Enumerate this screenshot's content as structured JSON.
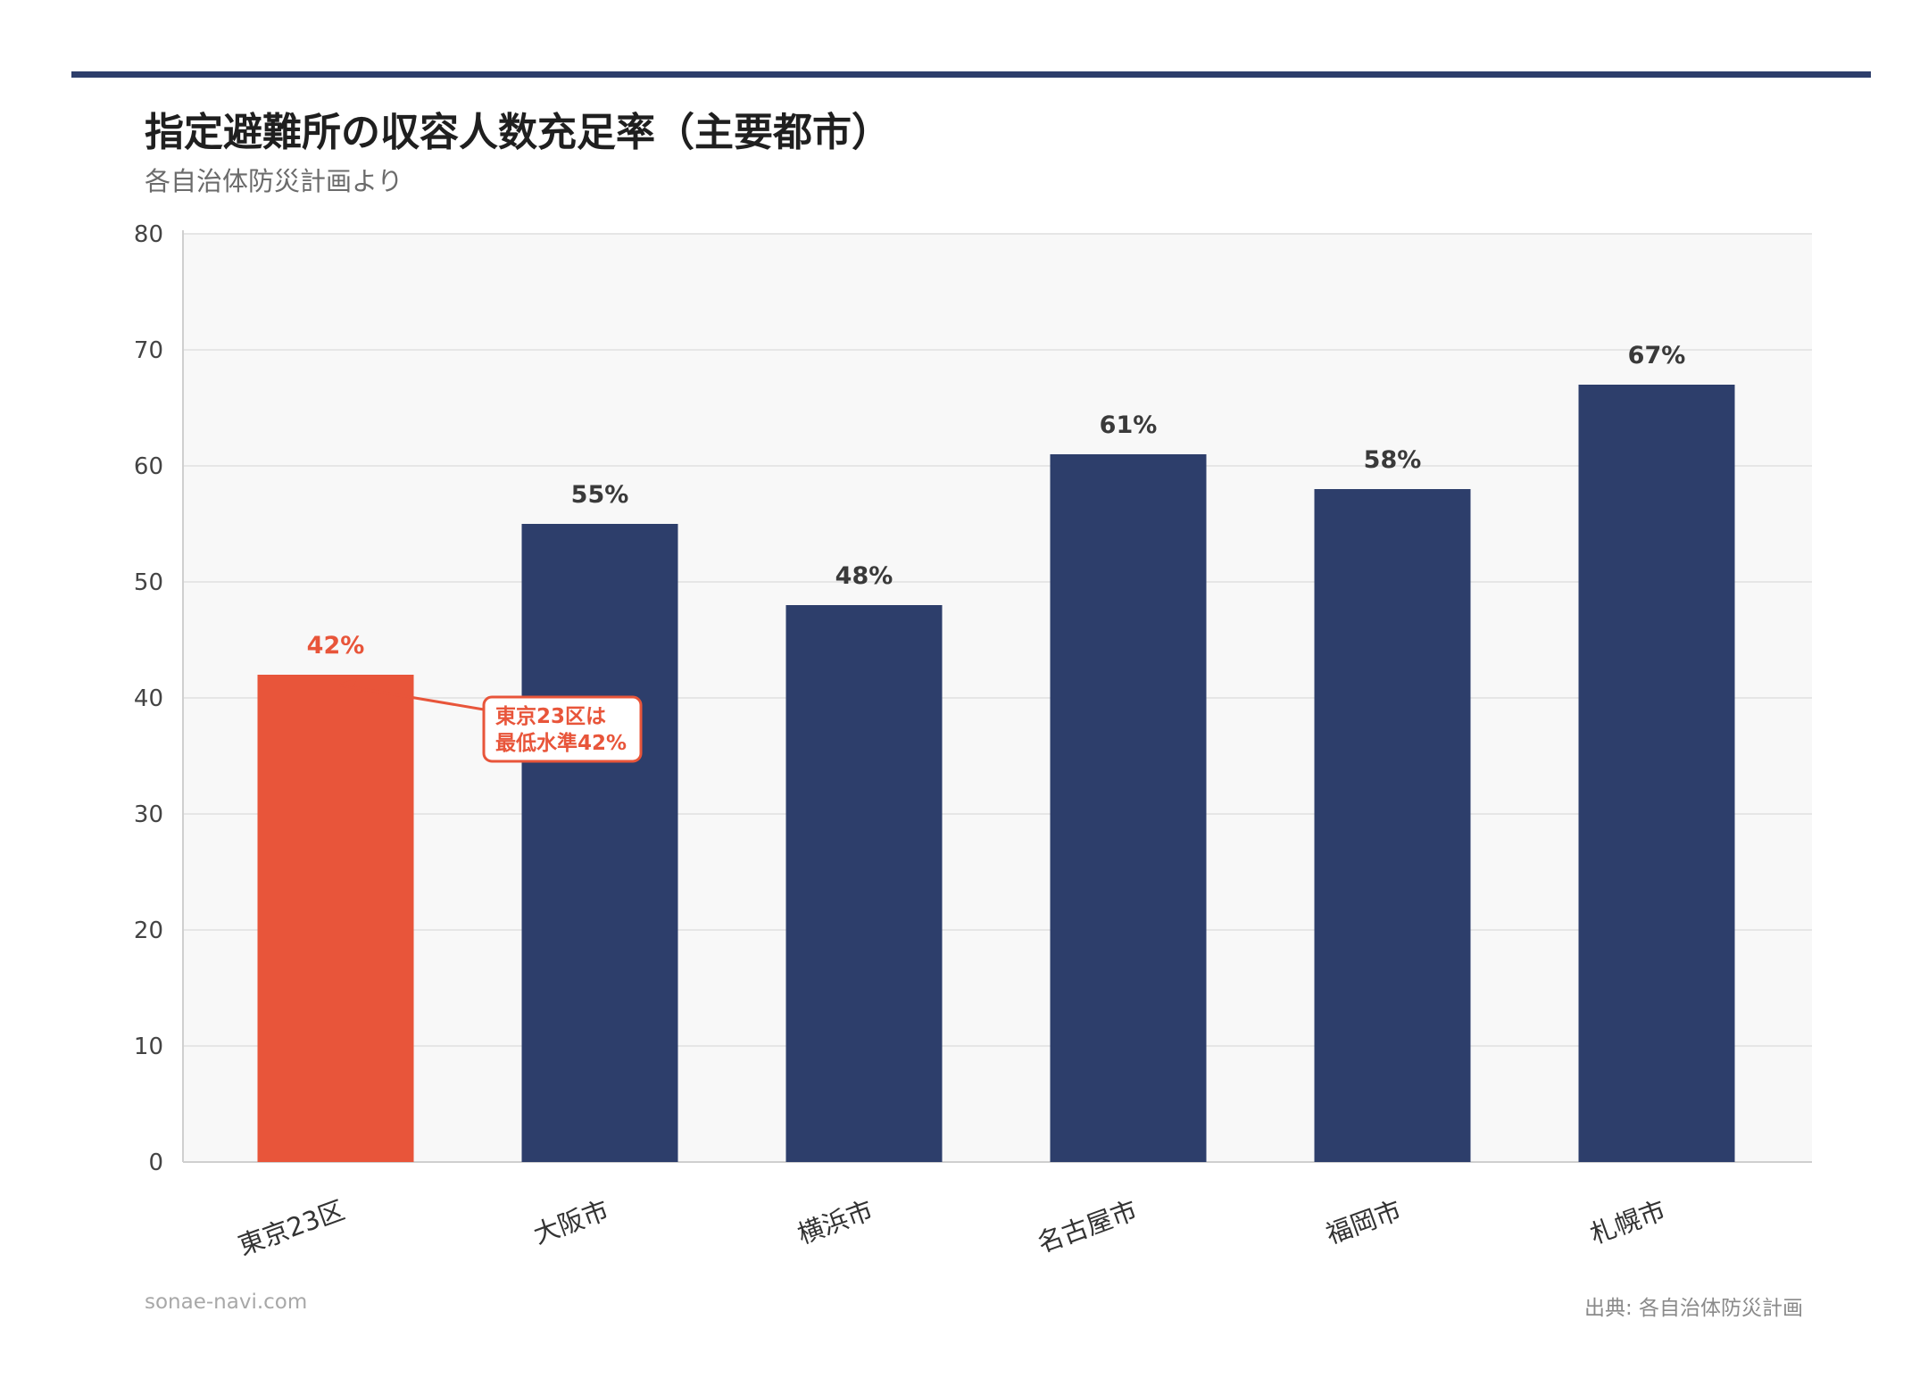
{
  "header": {
    "title": "指定避難所の収容人数充足率（主要都市）",
    "subtitle": "各自治体防災計画より"
  },
  "footer": {
    "site": "sonae-navi.com",
    "source": "出典: 各自治体防災計画"
  },
  "colors": {
    "highlight": "#e8553a",
    "bar": "#2d3e6b",
    "rule": "#2d3e6b",
    "plot_bg": "#f8f8f8",
    "grid": "#e6e6e6"
  },
  "chart_data": {
    "type": "bar",
    "categories": [
      "東京23区",
      "大阪市",
      "横浜市",
      "名古屋市",
      "福岡市",
      "札幌市"
    ],
    "values": [
      42,
      55,
      48,
      61,
      58,
      67
    ],
    "value_labels": [
      "42%",
      "55%",
      "48%",
      "61%",
      "58%",
      "67%"
    ],
    "highlight_index": 0,
    "ylim": [
      0,
      80
    ],
    "yticks": [
      0,
      10,
      20,
      30,
      40,
      50,
      60,
      70,
      80
    ],
    "grid": true,
    "annotation": {
      "target_index": 0,
      "lines": [
        "東京23区は",
        "最低水準42%"
      ]
    }
  }
}
